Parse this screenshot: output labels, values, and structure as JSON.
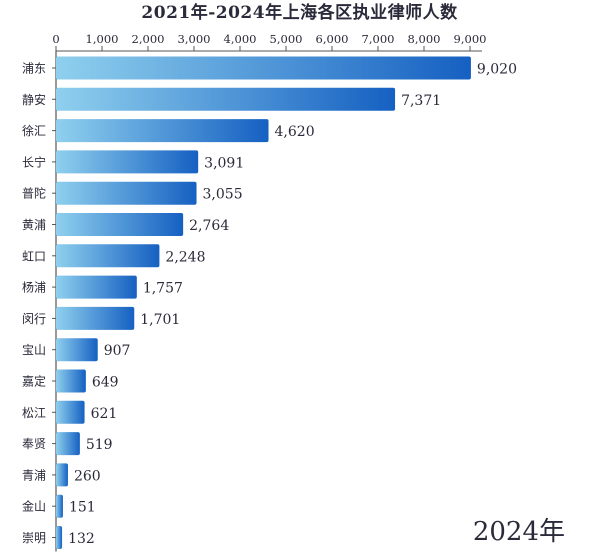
{
  "chart_data": {
    "type": "bar",
    "orientation": "horizontal",
    "title": "2021年-2024年上海各区执业律师人数",
    "year_label": "2024年",
    "categories": [
      "浦东",
      "静安",
      "徐汇",
      "长宁",
      "普陀",
      "黄浦",
      "虹口",
      "杨浦",
      "闵行",
      "宝山",
      "嘉定",
      "松江",
      "奉贤",
      "青浦",
      "金山",
      "崇明"
    ],
    "values": [
      9020,
      7371,
      4620,
      3091,
      3055,
      2764,
      2248,
      1757,
      1701,
      907,
      649,
      621,
      519,
      260,
      151,
      132
    ],
    "value_labels": [
      "9,020",
      "7,371",
      "4,620",
      "3,091",
      "3,055",
      "2,764",
      "2,248",
      "1,757",
      "1,701",
      "907",
      "649",
      "621",
      "519",
      "260",
      "151",
      "132"
    ],
    "xlim": [
      0,
      9000
    ],
    "x_ticks": [
      0,
      1000,
      2000,
      3000,
      4000,
      5000,
      6000,
      7000,
      8000,
      9000
    ],
    "x_tick_labels": [
      "0",
      "1,000",
      "2,000",
      "3,000",
      "4,000",
      "5,000",
      "6,000",
      "7,000",
      "8,000",
      "9,000"
    ],
    "axis_position": "top",
    "grid": false,
    "legend": false,
    "colors": {
      "bar_gradient_start": "#8fd0ee",
      "bar_gradient_end": "#1560c2",
      "text": "#2a2a3a",
      "axis": "#555555"
    }
  }
}
